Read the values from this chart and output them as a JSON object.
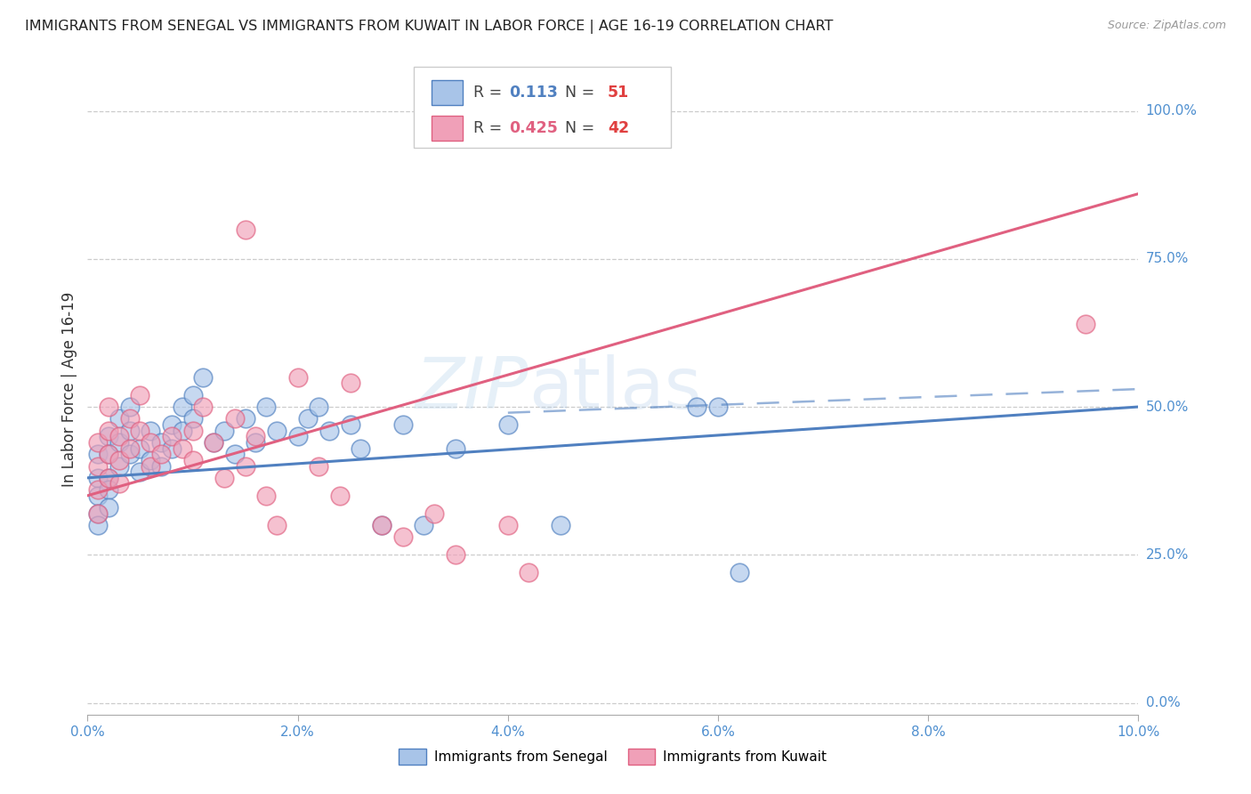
{
  "title": "IMMIGRANTS FROM SENEGAL VS IMMIGRANTS FROM KUWAIT IN LABOR FORCE | AGE 16-19 CORRELATION CHART",
  "source": "Source: ZipAtlas.com",
  "ylabel": "In Labor Force | Age 16-19",
  "xlim": [
    0.0,
    0.1
  ],
  "ylim": [
    -0.02,
    1.08
  ],
  "xticks": [
    0.0,
    0.02,
    0.04,
    0.06,
    0.08,
    0.1
  ],
  "xticklabels": [
    "0.0%",
    "2.0%",
    "4.0%",
    "6.0%",
    "8.0%",
    "10.0%"
  ],
  "yticks": [
    0.0,
    0.25,
    0.5,
    0.75,
    1.0
  ],
  "yticklabels": [
    "0.0%",
    "25.0%",
    "50.0%",
    "75.0%",
    "100.0%"
  ],
  "legend_r_senegal": "0.113",
  "legend_n_senegal": "51",
  "legend_r_kuwait": "0.425",
  "legend_n_kuwait": "42",
  "color_senegal": "#a8c4e8",
  "color_kuwait": "#f0a0b8",
  "color_senegal_line": "#5080c0",
  "color_kuwait_line": "#e06080",
  "color_axis_text": "#5090d0",
  "watermark_zip": "ZIP",
  "watermark_atlas": "atlas",
  "senegal_x": [
    0.001,
    0.001,
    0.001,
    0.001,
    0.001,
    0.002,
    0.002,
    0.002,
    0.002,
    0.002,
    0.003,
    0.003,
    0.003,
    0.004,
    0.004,
    0.004,
    0.005,
    0.005,
    0.006,
    0.006,
    0.007,
    0.007,
    0.008,
    0.008,
    0.009,
    0.009,
    0.01,
    0.01,
    0.011,
    0.012,
    0.013,
    0.014,
    0.015,
    0.016,
    0.017,
    0.018,
    0.02,
    0.021,
    0.022,
    0.023,
    0.025,
    0.026,
    0.028,
    0.03,
    0.032,
    0.035,
    0.04,
    0.045,
    0.058,
    0.06,
    0.062
  ],
  "senegal_y": [
    0.42,
    0.38,
    0.35,
    0.32,
    0.3,
    0.45,
    0.42,
    0.38,
    0.36,
    0.33,
    0.48,
    0.44,
    0.4,
    0.5,
    0.46,
    0.42,
    0.43,
    0.39,
    0.46,
    0.41,
    0.44,
    0.4,
    0.47,
    0.43,
    0.5,
    0.46,
    0.52,
    0.48,
    0.55,
    0.44,
    0.46,
    0.42,
    0.48,
    0.44,
    0.5,
    0.46,
    0.45,
    0.48,
    0.5,
    0.46,
    0.47,
    0.43,
    0.3,
    0.47,
    0.3,
    0.43,
    0.47,
    0.3,
    0.5,
    0.5,
    0.22
  ],
  "kuwait_x": [
    0.001,
    0.001,
    0.001,
    0.001,
    0.002,
    0.002,
    0.002,
    0.002,
    0.003,
    0.003,
    0.003,
    0.004,
    0.004,
    0.005,
    0.005,
    0.006,
    0.006,
    0.007,
    0.008,
    0.009,
    0.01,
    0.01,
    0.011,
    0.012,
    0.013,
    0.014,
    0.015,
    0.016,
    0.017,
    0.018,
    0.02,
    0.022,
    0.024,
    0.025,
    0.028,
    0.03,
    0.033,
    0.035,
    0.04,
    0.042,
    0.095,
    0.015
  ],
  "kuwait_y": [
    0.44,
    0.4,
    0.36,
    0.32,
    0.5,
    0.46,
    0.42,
    0.38,
    0.45,
    0.41,
    0.37,
    0.48,
    0.43,
    0.52,
    0.46,
    0.44,
    0.4,
    0.42,
    0.45,
    0.43,
    0.46,
    0.41,
    0.5,
    0.44,
    0.38,
    0.48,
    0.4,
    0.45,
    0.35,
    0.3,
    0.55,
    0.4,
    0.35,
    0.54,
    0.3,
    0.28,
    0.32,
    0.25,
    0.3,
    0.22,
    0.64,
    0.8
  ],
  "senegal_line_x": [
    0.0,
    0.1
  ],
  "senegal_line_y": [
    0.38,
    0.5
  ],
  "kuwait_line_x": [
    0.0,
    0.1
  ],
  "kuwait_line_y": [
    0.35,
    0.86
  ],
  "dashed_line_x": [
    0.04,
    0.1
  ],
  "dashed_line_y": [
    0.49,
    0.53
  ]
}
